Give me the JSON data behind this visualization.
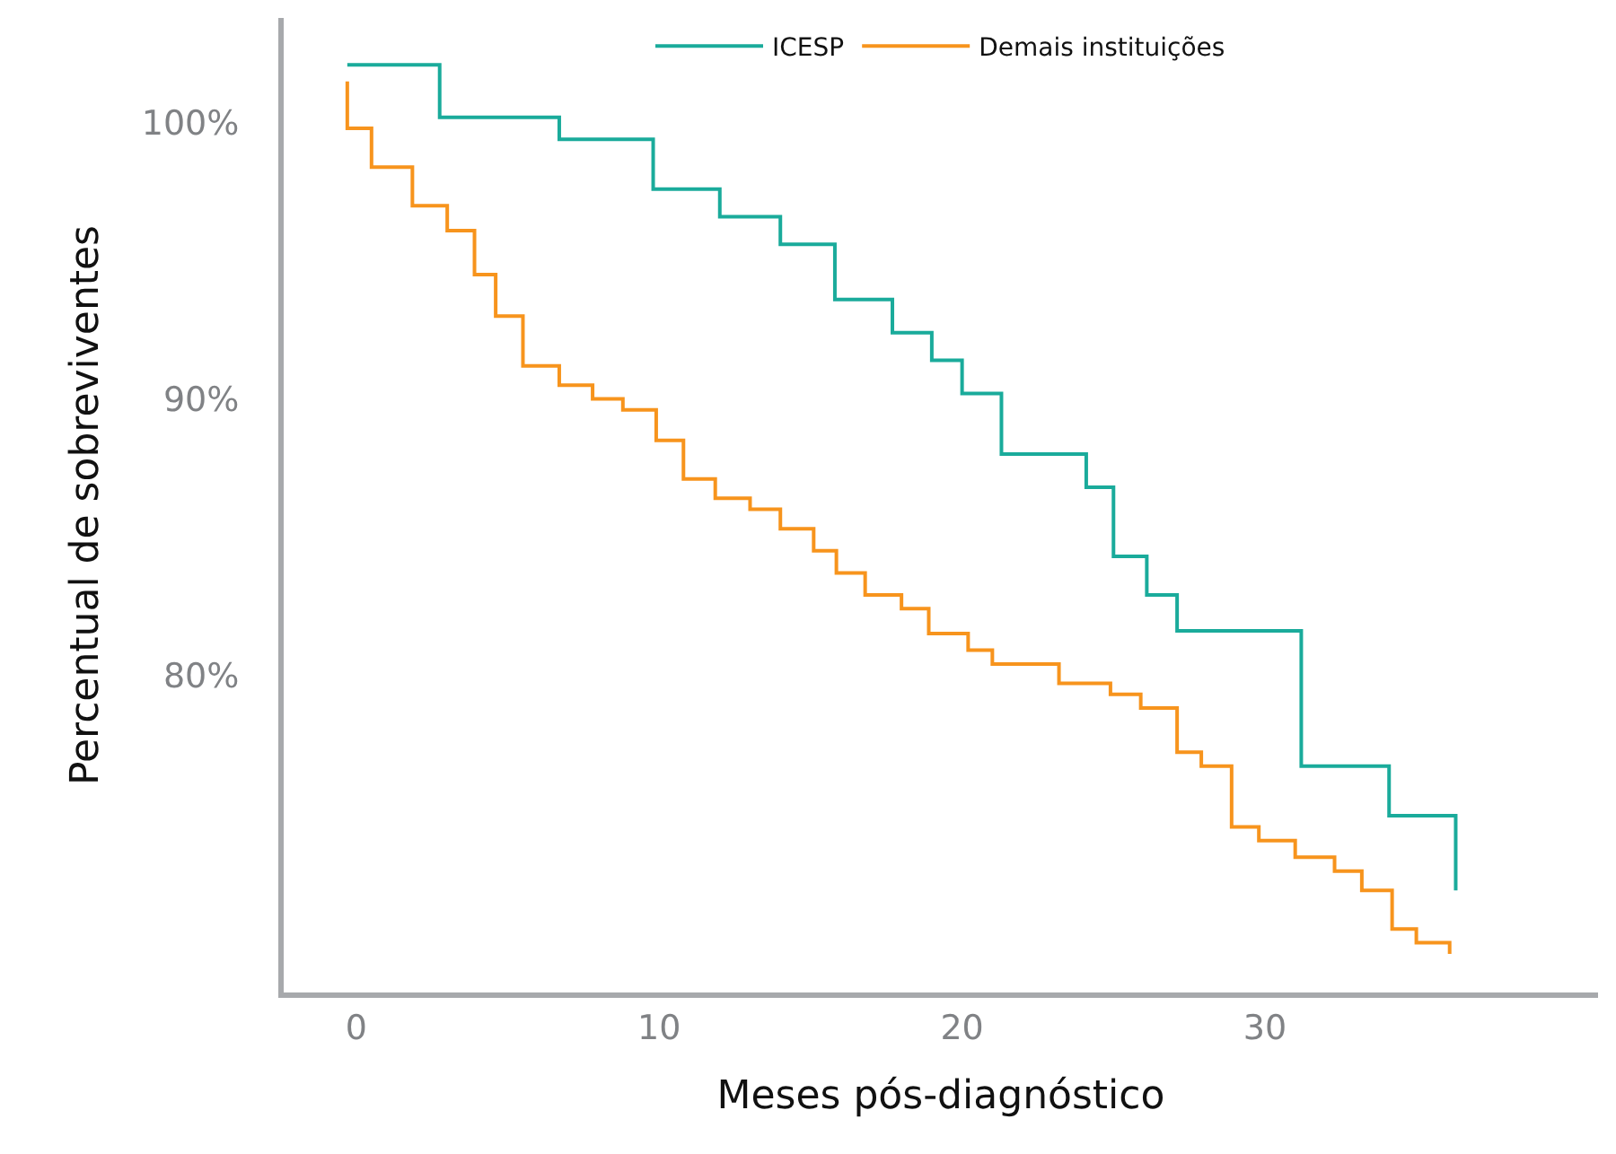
{
  "chart_data": {
    "type": "step",
    "xlabel": "Meses pós-diagnóstico",
    "ylabel": "Percentual de sobreviventes",
    "xlim": [
      -2.4,
      41
    ],
    "ylim": [
      68.5,
      103.8
    ],
    "xticks": [
      0,
      10,
      20,
      30
    ],
    "yticks": [
      {
        "value": 80,
        "label": "80%"
      },
      {
        "value": 90,
        "label": "90%"
      },
      {
        "value": 100,
        "label": "100%"
      }
    ],
    "legend": "top",
    "marker": "none",
    "line_style": "solid",
    "series": [
      {
        "name": "ICESP",
        "color": "#1aab9b",
        "x": [
          -0.3,
          2.75,
          6.7,
          9.8,
          12.0,
          14.0,
          15.8,
          17.7,
          19.0,
          20.0,
          21.3,
          24.1,
          25.0,
          26.1,
          27.1,
          31.2,
          34.1,
          36.3
        ],
        "values": [
          102.1,
          100.2,
          99.4,
          97.6,
          96.6,
          95.6,
          93.6,
          92.4,
          91.4,
          90.2,
          88.0,
          86.8,
          84.3,
          82.9,
          81.6,
          76.7,
          74.9,
          72.2
        ]
      },
      {
        "name": "Demais instituições",
        "color": "#f7941d",
        "x": [
          -0.3,
          -0.3,
          0.5,
          1.85,
          3.0,
          3.9,
          4.6,
          5.5,
          6.7,
          7.8,
          8.8,
          9.9,
          10.8,
          11.85,
          13.0,
          14.0,
          15.1,
          15.85,
          16.8,
          18.0,
          18.9,
          20.2,
          21.0,
          23.2,
          24.9,
          25.9,
          27.1,
          27.9,
          28.9,
          29.8,
          31.0,
          32.3,
          33.2,
          34.2,
          35.0,
          36.1
        ],
        "values": [
          101.5,
          99.8,
          98.4,
          97.0,
          96.1,
          94.5,
          93.0,
          91.2,
          90.5,
          90.0,
          89.6,
          88.5,
          87.1,
          86.4,
          86.0,
          85.3,
          84.5,
          83.7,
          82.9,
          82.4,
          81.5,
          80.9,
          80.4,
          79.7,
          79.3,
          78.8,
          77.2,
          76.7,
          74.5,
          74.0,
          73.4,
          72.9,
          72.2,
          70.8,
          70.3,
          69.9
        ]
      }
    ]
  }
}
